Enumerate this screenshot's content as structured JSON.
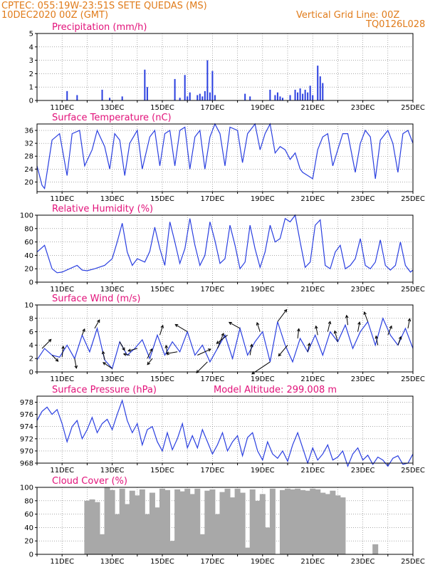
{
  "header": {
    "left1": "CPTEC:   055:19W-23:51S   SETE QUEDAS (MS)",
    "left2": "10DEC2020 00Z (GMT)",
    "right1": "Vertical Grid Line: 00Z",
    "right2": "TQ0126L028"
  },
  "colors": {
    "header": "#e07b1a",
    "title": "#e2127a",
    "line": "#2a3fe0",
    "cloud": "#a8a8a8"
  },
  "xticks": [
    "11DEC",
    "13DEC",
    "15DEC",
    "17DEC",
    "19DEC",
    "21DEC",
    "23DEC",
    "25DEC"
  ],
  "chart_data": [
    {
      "type": "bar",
      "title": "Precipitation (mm/h)",
      "ylim": [
        0,
        5
      ],
      "yticks": [
        "0",
        "1",
        "2",
        "3",
        "4",
        "5"
      ],
      "x_day_range": [
        10,
        25
      ],
      "x": [
        11.2,
        11.6,
        12.6,
        12.9,
        13.4,
        14.3,
        14.4,
        15.5,
        15.7,
        15.9,
        16.0,
        16.1,
        16.4,
        16.5,
        16.6,
        16.7,
        16.8,
        16.9,
        17.0,
        17.1,
        18.3,
        18.5,
        19.3,
        19.5,
        19.6,
        19.7,
        19.8,
        20.1,
        20.3,
        20.4,
        20.5,
        20.6,
        20.7,
        20.8,
        20.9,
        21.0,
        21.2,
        21.3,
        21.4
      ],
      "values": [
        0.7,
        0.4,
        0.8,
        0.2,
        0.3,
        2.3,
        1.0,
        1.6,
        0.2,
        1.9,
        0.3,
        0.6,
        0.4,
        0.5,
        0.3,
        0.7,
        3.0,
        0.6,
        2.2,
        0.4,
        0.5,
        0.3,
        0.8,
        0.4,
        0.6,
        0.3,
        0.2,
        0.4,
        0.8,
        0.6,
        0.9,
        0.5,
        0.8,
        0.6,
        1.1,
        0.4,
        2.6,
        1.8,
        1.3
      ]
    },
    {
      "type": "line",
      "title": "Surface Temperature (nC)",
      "ylim": [
        17,
        38
      ],
      "yticks": [
        "20",
        "24",
        "28",
        "32",
        "36"
      ],
      "x_day_range": [
        10,
        25
      ],
      "x": [
        10.0,
        10.2,
        10.3,
        10.6,
        10.9,
        11.2,
        11.4,
        11.7,
        11.9,
        12.2,
        12.4,
        12.7,
        12.9,
        13.1,
        13.3,
        13.5,
        13.7,
        14.0,
        14.2,
        14.5,
        14.7,
        14.9,
        15.1,
        15.3,
        15.5,
        15.7,
        15.9,
        16.1,
        16.3,
        16.5,
        16.7,
        16.9,
        17.1,
        17.3,
        17.5,
        17.7,
        18.0,
        18.2,
        18.4,
        18.7,
        18.9,
        19.1,
        19.3,
        19.5,
        19.7,
        19.9,
        20.1,
        20.3,
        20.5,
        20.6,
        20.8,
        21.0,
        21.2,
        21.4,
        21.6,
        21.8,
        22.0,
        22.2,
        22.4,
        22.7,
        22.9,
        23.1,
        23.3,
        23.5,
        23.7,
        24.0,
        24.2,
        24.4,
        24.6,
        24.8,
        25.0
      ],
      "values": [
        25,
        19,
        18,
        33,
        35,
        22,
        35,
        36,
        25,
        30,
        36,
        31,
        24,
        35,
        33,
        22,
        32,
        36,
        24,
        34,
        36,
        25,
        35,
        36,
        25,
        36,
        37,
        24,
        34,
        36,
        24,
        34,
        38,
        35,
        25,
        37,
        36,
        26,
        35,
        38,
        30,
        35,
        38,
        29,
        31,
        30,
        27,
        29,
        24,
        23,
        22,
        21,
        30,
        34,
        35,
        25,
        30,
        35,
        35,
        23,
        32,
        36,
        34,
        21,
        33,
        36,
        32,
        23,
        35,
        36,
        32
      ]
    },
    {
      "type": "line",
      "title": "Relative Humidity (%)",
      "ylim": [
        0,
        100
      ],
      "yticks": [
        "0",
        "20",
        "40",
        "60",
        "80",
        "100"
      ],
      "x_day_range": [
        10,
        25
      ],
      "x": [
        10.0,
        10.3,
        10.6,
        10.8,
        11.0,
        11.3,
        11.6,
        11.8,
        12.0,
        12.3,
        12.7,
        13.0,
        13.2,
        13.4,
        13.6,
        13.8,
        14.0,
        14.3,
        14.5,
        14.7,
        14.9,
        15.1,
        15.3,
        15.5,
        15.7,
        15.9,
        16.1,
        16.3,
        16.5,
        16.7,
        16.9,
        17.1,
        17.3,
        17.5,
        17.7,
        17.9,
        18.1,
        18.3,
        18.5,
        18.7,
        18.9,
        19.1,
        19.3,
        19.5,
        19.7,
        19.9,
        20.1,
        20.3,
        20.5,
        20.7,
        20.9,
        21.1,
        21.3,
        21.5,
        21.7,
        21.9,
        22.1,
        22.3,
        22.5,
        22.7,
        22.9,
        23.1,
        23.3,
        23.5,
        23.7,
        23.9,
        24.1,
        24.3,
        24.5,
        24.7,
        24.9,
        25.0
      ],
      "values": [
        45,
        55,
        20,
        14,
        15,
        20,
        25,
        18,
        17,
        20,
        25,
        35,
        60,
        88,
        45,
        25,
        35,
        30,
        46,
        82,
        50,
        25,
        90,
        60,
        28,
        50,
        95,
        55,
        25,
        40,
        90,
        62,
        28,
        35,
        85,
        55,
        20,
        30,
        85,
        50,
        22,
        45,
        85,
        60,
        65,
        95,
        90,
        100,
        60,
        22,
        30,
        85,
        93,
        25,
        20,
        45,
        55,
        20,
        25,
        35,
        65,
        25,
        20,
        30,
        63,
        25,
        18,
        25,
        60,
        25,
        15,
        18
      ]
    },
    {
      "type": "line",
      "title": "Surface Wind (m/s)",
      "ylim": [
        0,
        10
      ],
      "yticks": [
        "0",
        "2",
        "4",
        "6",
        "8",
        "10"
      ],
      "x_day_range": [
        10,
        25
      ],
      "x": [
        10.0,
        10.3,
        10.6,
        10.9,
        11.2,
        11.5,
        11.8,
        12.1,
        12.4,
        12.7,
        13.0,
        13.3,
        13.6,
        13.9,
        14.2,
        14.5,
        14.8,
        15.1,
        15.4,
        15.7,
        16.0,
        16.3,
        16.6,
        16.9,
        17.2,
        17.5,
        17.8,
        18.1,
        18.4,
        18.7,
        19.0,
        19.3,
        19.6,
        19.9,
        20.2,
        20.5,
        20.8,
        21.1,
        21.4,
        21.7,
        22.0,
        22.3,
        22.6,
        22.9,
        23.2,
        23.5,
        23.8,
        24.1,
        24.4,
        24.7,
        25.0
      ],
      "values": [
        1.8,
        3.5,
        2.5,
        2.2,
        4.0,
        2.0,
        5.5,
        3.0,
        6.5,
        1.8,
        0.5,
        4.5,
        2.5,
        3.5,
        4.8,
        2.0,
        5.5,
        2.5,
        4.5,
        3.0,
        6.0,
        2.5,
        4.0,
        1.5,
        3.5,
        5.5,
        2.0,
        6.5,
        2.5,
        4.5,
        6.0,
        1.5,
        7.5,
        4.0,
        1.5,
        5.0,
        3.0,
        5.5,
        2.5,
        6.0,
        4.5,
        7.0,
        3.5,
        6.0,
        7.5,
        4.0,
        8.0,
        5.5,
        4.0,
        6.5,
        3.5
      ],
      "arrows": [
        {
          "x": 10.2,
          "u": 1.5,
          "v": 1.5
        },
        {
          "x": 10.6,
          "u": 1.0,
          "v": -1.0
        },
        {
          "x": 11.0,
          "u": 0.2,
          "v": 1.8
        },
        {
          "x": 11.5,
          "u": 0.3,
          "v": -1.6
        },
        {
          "x": 11.8,
          "u": 0.4,
          "v": 1.0
        },
        {
          "x": 12.3,
          "u": 0.8,
          "v": 1.4
        },
        {
          "x": 12.7,
          "u": -0.3,
          "v": 1.4
        },
        {
          "x": 13.0,
          "u": -1.5,
          "v": 1.0
        },
        {
          "x": 13.3,
          "u": 0.8,
          "v": -1.4
        },
        {
          "x": 13.7,
          "u": -1.0,
          "v": 0.2
        },
        {
          "x": 14.0,
          "u": -1.5,
          "v": -0.4
        },
        {
          "x": 14.4,
          "u": 0.8,
          "v": 1.6
        },
        {
          "x": 14.6,
          "u": -0.8,
          "v": -1.0
        },
        {
          "x": 14.9,
          "u": 0.5,
          "v": 1.6
        },
        {
          "x": 15.2,
          "u": -0.2,
          "v": 1.6
        },
        {
          "x": 15.6,
          "u": -1.8,
          "v": -0.3
        },
        {
          "x": 16.0,
          "u": -2.0,
          "v": 1.2
        },
        {
          "x": 16.4,
          "u": 2.2,
          "v": 1.0
        },
        {
          "x": 16.8,
          "u": -1.8,
          "v": -1.8
        },
        {
          "x": 17.2,
          "u": 1.0,
          "v": 2.5
        },
        {
          "x": 17.6,
          "u": -1.8,
          "v": -1.4
        },
        {
          "x": 18.1,
          "u": -1.8,
          "v": 1.0
        },
        {
          "x": 18.5,
          "u": 0.3,
          "v": 1.8
        },
        {
          "x": 18.9,
          "u": -0.5,
          "v": 1.5
        },
        {
          "x": 19.3,
          "u": -3.0,
          "v": -2.0
        },
        {
          "x": 19.6,
          "u": 1.5,
          "v": 2.0
        },
        {
          "x": 20.0,
          "u": -1.5,
          "v": -1.8
        },
        {
          "x": 20.4,
          "u": 0.2,
          "v": 1.6
        },
        {
          "x": 20.8,
          "u": 0.3,
          "v": 1.4
        },
        {
          "x": 21.2,
          "u": -0.3,
          "v": 1.5
        },
        {
          "x": 21.6,
          "u": 0.4,
          "v": 1.7
        },
        {
          "x": 22.0,
          "u": -0.5,
          "v": 1.8
        },
        {
          "x": 22.4,
          "u": -0.2,
          "v": 1.6
        },
        {
          "x": 22.8,
          "u": 0.3,
          "v": 1.6
        },
        {
          "x": 23.2,
          "u": -0.6,
          "v": 1.6
        },
        {
          "x": 23.6,
          "u": -0.3,
          "v": 1.5
        },
        {
          "x": 24.0,
          "u": 0.6,
          "v": 1.5
        },
        {
          "x": 24.4,
          "u": 0.5,
          "v": 1.4
        },
        {
          "x": 24.8,
          "u": 0.3,
          "v": 1.6
        }
      ]
    },
    {
      "type": "line",
      "title": "Surface Pressure (hPa)",
      "annotation": "Model Altitude: 299.008 m",
      "ylim": [
        968,
        979
      ],
      "yticks": [
        "968",
        "970",
        "972",
        "974",
        "976",
        "978"
      ],
      "x_day_range": [
        10,
        25
      ],
      "x": [
        10.0,
        10.2,
        10.4,
        10.6,
        10.8,
        11.0,
        11.2,
        11.4,
        11.6,
        11.8,
        12.0,
        12.2,
        12.4,
        12.6,
        12.8,
        13.0,
        13.2,
        13.4,
        13.6,
        13.8,
        14.0,
        14.2,
        14.4,
        14.6,
        14.8,
        15.0,
        15.2,
        15.4,
        15.6,
        15.8,
        16.0,
        16.2,
        16.4,
        16.6,
        16.8,
        17.0,
        17.2,
        17.4,
        17.6,
        17.8,
        18.0,
        18.2,
        18.4,
        18.6,
        18.8,
        19.0,
        19.2,
        19.4,
        19.6,
        19.8,
        20.0,
        20.2,
        20.4,
        20.6,
        20.8,
        21.0,
        21.2,
        21.4,
        21.6,
        21.8,
        22.0,
        22.2,
        22.4,
        22.6,
        22.8,
        23.0,
        23.2,
        23.4,
        23.6,
        23.8,
        24.0,
        24.2,
        24.4,
        24.6,
        24.8,
        25.0
      ],
      "values": [
        975.0,
        976.5,
        977.2,
        976.0,
        976.8,
        974.5,
        971.5,
        974.0,
        975.0,
        972.0,
        973.5,
        975.5,
        973.0,
        974.5,
        975.2,
        973.5,
        976.0,
        978.3,
        975.0,
        973.0,
        974.5,
        971.0,
        973.5,
        974.0,
        971.5,
        970.0,
        973.0,
        970.2,
        972.0,
        974.5,
        970.5,
        972.5,
        970.5,
        973.5,
        971.5,
        969.5,
        971.0,
        973.0,
        970.0,
        971.5,
        972.5,
        969.2,
        972.2,
        973.0,
        970.0,
        968.5,
        971.5,
        969.5,
        968.8,
        970.0,
        968.3,
        971.0,
        973.0,
        970.5,
        968.0,
        970.5,
        968.5,
        969.5,
        971.0,
        968.5,
        969.0,
        970.0,
        967.5,
        969.5,
        970.5,
        968.5,
        969.3,
        967.8,
        969.0,
        968.5,
        967.5,
        968.8,
        969.2,
        967.8,
        968.0,
        969.5
      ]
    },
    {
      "type": "bar",
      "title": "Cloud Cover (%)",
      "ylim": [
        0,
        100
      ],
      "yticks": [
        "0",
        "20",
        "40",
        "60",
        "80",
        "100"
      ],
      "x_day_range": [
        10,
        25
      ],
      "x": [
        11.9,
        12.0,
        12.2,
        12.4,
        12.6,
        12.8,
        13.0,
        13.2,
        13.4,
        13.6,
        13.8,
        14.0,
        14.2,
        14.4,
        14.6,
        14.8,
        15.0,
        15.2,
        15.4,
        15.6,
        15.8,
        16.0,
        16.2,
        16.4,
        16.6,
        16.8,
        17.0,
        17.2,
        17.4,
        17.6,
        17.8,
        18.0,
        18.2,
        18.4,
        18.6,
        18.8,
        19.0,
        19.2,
        19.4,
        19.6,
        19.8,
        20.0,
        20.2,
        20.4,
        20.6,
        20.8,
        21.0,
        21.2,
        21.4,
        21.6,
        21.8,
        22.0,
        22.2,
        22.4,
        23.5
      ],
      "values": [
        0,
        80,
        82,
        78,
        30,
        100,
        96,
        60,
        98,
        75,
        95,
        88,
        97,
        60,
        92,
        70,
        98,
        96,
        20,
        97,
        94,
        98,
        90,
        98,
        30,
        95,
        97,
        60,
        93,
        98,
        85,
        98,
        92,
        10,
        97,
        80,
        90,
        40,
        98,
        0,
        96,
        98,
        97,
        98,
        96,
        95,
        98,
        97,
        92,
        90,
        95,
        88,
        85,
        0,
        15
      ]
    }
  ]
}
